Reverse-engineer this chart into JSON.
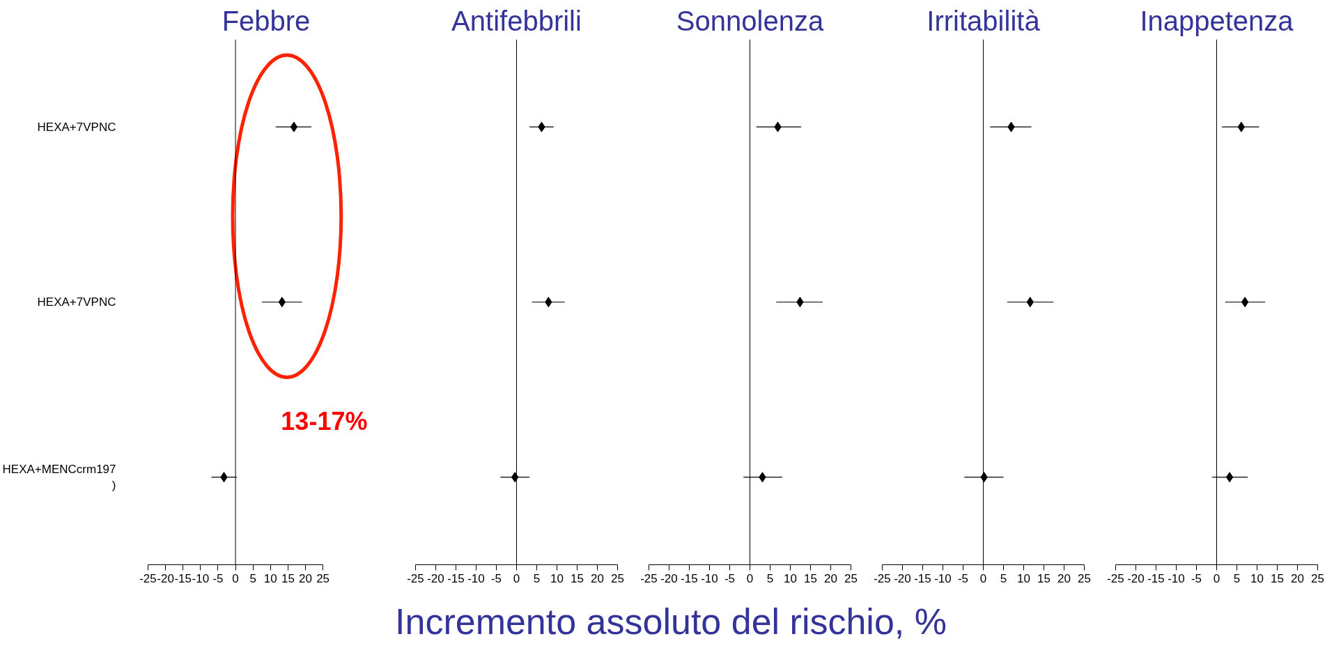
{
  "chart_data": [
    {
      "type": "scatter",
      "title": "Febbre",
      "orientation": "horizontal",
      "categories": [
        "HEXA+7VPNC",
        "HEXA+7VPNC",
        "HEXA+MENCcrm197\n)"
      ],
      "marker": "diamond",
      "xlim": [
        -25,
        25
      ],
      "xticks": [
        -25,
        -20,
        -15,
        -10,
        -5,
        0,
        5,
        10,
        15,
        20,
        25
      ],
      "ref_lines": [
        {
          "axis": "x",
          "value": 0
        }
      ],
      "annotations": [
        "13-17%"
      ],
      "series": [
        {
          "color": "#000000",
          "values": [
            16.7,
            13.3,
            -3.3
          ],
          "errors": [
            [
              11.5,
              21.7
            ],
            [
              7.5,
              19.0
            ],
            [
              -6.9,
              0.4
            ]
          ]
        }
      ]
    },
    {
      "type": "scatter",
      "title": "Antifebbrili",
      "orientation": "horizontal",
      "categories": [
        null,
        null,
        null
      ],
      "tick_labels": "x",
      "marker": "diamond",
      "xlim": [
        -25,
        25
      ],
      "xticks": [
        -25,
        -20,
        -15,
        -10,
        -5,
        0,
        5,
        10,
        15,
        20,
        25
      ],
      "ref_lines": [
        {
          "axis": "x",
          "value": 0
        }
      ],
      "series": [
        {
          "color": "#000000",
          "values": [
            6.2,
            7.9,
            -0.4
          ],
          "errors": [
            [
              3.2,
              9.2
            ],
            [
              3.8,
              11.9
            ],
            [
              -4.0,
              3.2
            ]
          ]
        }
      ]
    },
    {
      "type": "scatter",
      "title": "Sonnolenza",
      "xlabel": "Incremento assoluto del rischio, %",
      "orientation": "horizontal",
      "categories": [
        null,
        null,
        null
      ],
      "tick_labels": "x",
      "marker": "diamond",
      "xlim": [
        -25,
        25
      ],
      "xticks": [
        -25,
        -20,
        -15,
        -10,
        -5,
        0,
        5,
        10,
        15,
        20,
        25
      ],
      "ref_lines": [
        {
          "axis": "x",
          "value": 0
        }
      ],
      "series": [
        {
          "color": "#000000",
          "values": [
            6.9,
            12.4,
            3.1
          ],
          "errors": [
            [
              1.6,
              12.7
            ],
            [
              6.5,
              18.0
            ],
            [
              -1.6,
              8.0
            ]
          ]
        }
      ]
    },
    {
      "type": "scatter",
      "title": "Irritabilità",
      "orientation": "horizontal",
      "categories": [
        null,
        null,
        null
      ],
      "tick_labels": "x",
      "marker": "diamond",
      "xlim": [
        -25,
        25
      ],
      "xticks": [
        -25,
        -20,
        -15,
        -10,
        -5,
        0,
        5,
        10,
        15,
        20,
        25
      ],
      "ref_lines": [
        {
          "axis": "x",
          "value": 0
        }
      ],
      "series": [
        {
          "color": "#000000",
          "values": [
            6.9,
            11.6,
            0.2
          ],
          "errors": [
            [
              1.7,
              11.9
            ],
            [
              5.9,
              17.4
            ],
            [
              -4.7,
              5.0
            ]
          ]
        }
      ]
    },
    {
      "type": "scatter",
      "title": "Inappetenza",
      "orientation": "horizontal",
      "categories": [
        null,
        null,
        null
      ],
      "tick_labels": "x",
      "marker": "diamond",
      "xlim": [
        -25,
        25
      ],
      "xticks": [
        -25,
        -20,
        -15,
        -10,
        -5,
        0,
        5,
        10,
        15,
        20,
        25
      ],
      "ref_lines": [
        {
          "axis": "x",
          "value": 0
        }
      ],
      "series": [
        {
          "color": "#000000",
          "values": [
            6.1,
            7.0,
            3.2
          ],
          "errors": [
            [
              1.3,
              10.5
            ],
            [
              2.1,
              12.0
            ],
            [
              -1.1,
              7.7
            ]
          ]
        }
      ]
    }
  ]
}
